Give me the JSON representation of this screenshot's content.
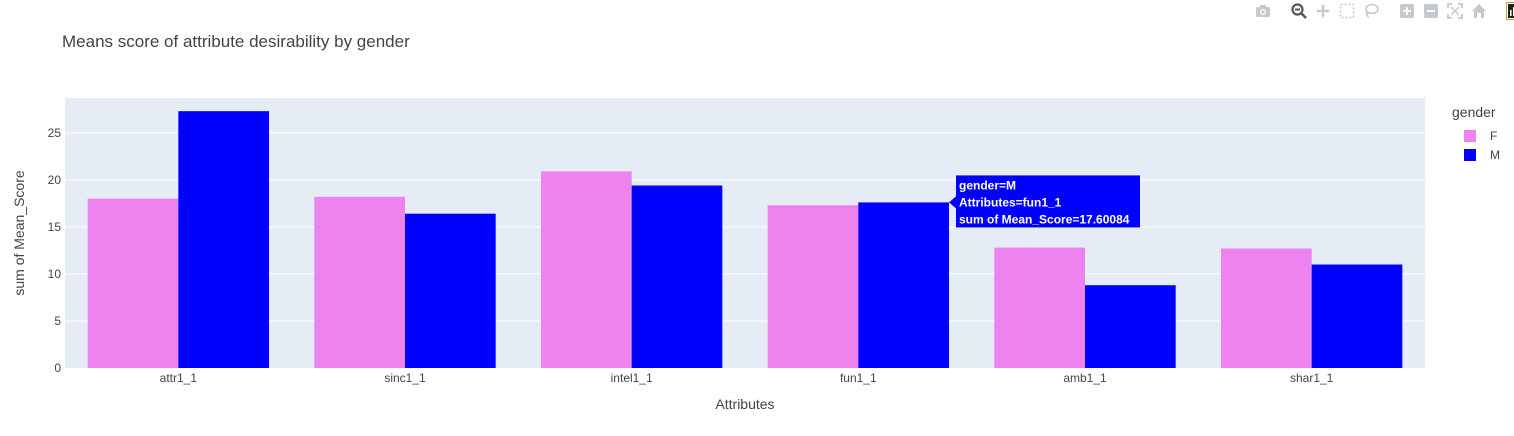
{
  "toolbar": {
    "icons": [
      "camera-icon",
      "zoom-icon",
      "pan-icon",
      "box-select-icon",
      "lasso-icon",
      "zoom-in-icon",
      "zoom-out-icon",
      "autoscale-icon",
      "reset-axes-icon",
      "plotly-logo-icon"
    ]
  },
  "colors": {
    "F": "#ee82ee",
    "M": "#0000ff",
    "plot_bg": "#e5ecf6",
    "tooltip_bg": "#0000ff"
  },
  "chart_data": {
    "type": "bar",
    "title": "Means score of attribute desirability by gender",
    "xlabel": "Attributes",
    "ylabel": "sum of Mean_Score",
    "ylim": [
      0,
      28.7
    ],
    "yticks": [
      0,
      5,
      10,
      15,
      20,
      25
    ],
    "categories": [
      "attr1_1",
      "sinc1_1",
      "intel1_1",
      "fun1_1",
      "amb1_1",
      "shar1_1"
    ],
    "series": [
      {
        "name": "F",
        "values": [
          18.0,
          18.2,
          20.9,
          17.3,
          12.8,
          12.7
        ]
      },
      {
        "name": "M",
        "values": [
          27.3,
          16.4,
          19.4,
          17.60084,
          8.8,
          11.0
        ]
      }
    ],
    "legend": {
      "title": "gender",
      "placement": "right"
    },
    "grid": true,
    "tooltip": {
      "lines": [
        "gender=M",
        "Attributes=fun1_1",
        "sum of Mean_Score=17.60084"
      ]
    }
  }
}
